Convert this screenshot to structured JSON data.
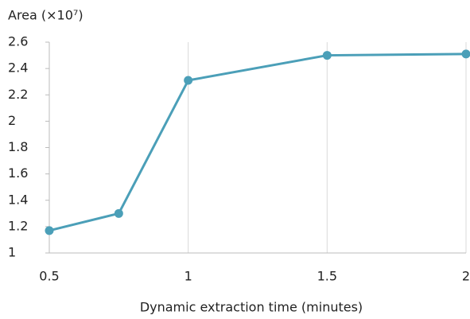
{
  "chart_data": {
    "type": "line",
    "title": "Area (×10⁷)",
    "x_label": "Dynamic extraction time (minutes)",
    "x": [
      0.5,
      0.75,
      1,
      1.5,
      2
    ],
    "series": [
      {
        "name": "Area",
        "color": "#4b9fb8",
        "values": [
          1.17,
          1.3,
          2.31,
          2.5,
          2.51
        ]
      }
    ],
    "xlim": [
      0.5,
      2
    ],
    "xticks": [
      0.5,
      1,
      1.5,
      2
    ],
    "ylim": [
      1,
      2.6
    ],
    "yticks": [
      1,
      1.2,
      1.4,
      1.6,
      1.8,
      2,
      2.2,
      2.4,
      2.6
    ],
    "grid": true
  }
}
